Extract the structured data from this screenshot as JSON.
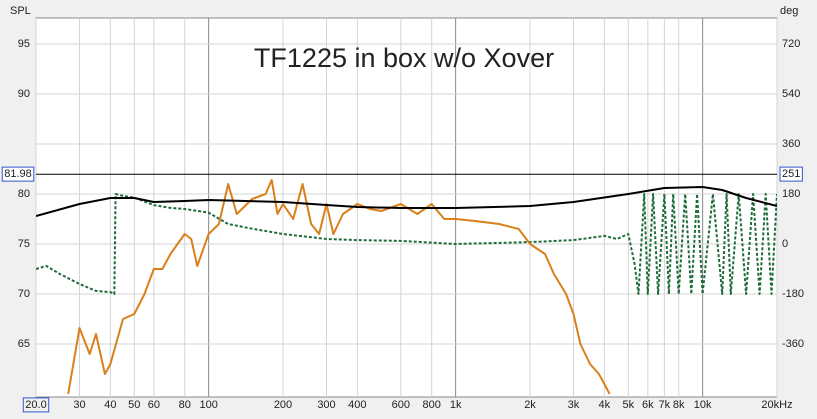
{
  "chart_data": {
    "type": "line",
    "title": "TF1225 in box w/o Xover",
    "ylabel": "SPL",
    "y2label": "deg",
    "xscale": "log",
    "xlim": [
      20,
      20000
    ],
    "xticks": [
      {
        "value": 20,
        "label": "20.0"
      },
      30,
      40,
      50,
      60,
      80,
      100,
      200,
      300,
      400,
      600,
      800,
      {
        "value": 1000,
        "label": "1k"
      },
      {
        "value": 2000,
        "label": "2k"
      },
      {
        "value": 3000,
        "label": "3k"
      },
      {
        "value": 4000,
        "label": "4k"
      },
      {
        "value": 5000,
        "label": "5k"
      },
      {
        "value": 6000,
        "label": "6k"
      },
      {
        "value": 7000,
        "label": "7k"
      },
      {
        "value": 8000,
        "label": "8k"
      },
      {
        "value": 10000,
        "label": "10k"
      },
      {
        "value": 20000,
        "label": "20kHz"
      }
    ],
    "ylim": [
      59.7,
      97.6
    ],
    "yticks": [
      65,
      70,
      75,
      80,
      90,
      95
    ],
    "y2lim": [
      -550.8,
      813.6
    ],
    "y2ticks": [
      -360,
      -180,
      0,
      180,
      360,
      540,
      720
    ],
    "grid": true,
    "cursor": {
      "y": 81.98,
      "y2": 251
    },
    "series": [
      {
        "color": "#000000",
        "width": 2,
        "x": [
          20,
          30,
          40,
          50,
          60,
          80,
          100,
          200,
          300,
          400,
          600,
          1000,
          2000,
          3000,
          5000,
          7000,
          10000,
          12000,
          15000,
          20000
        ],
        "values": [
          77.8,
          79.0,
          79.6,
          79.6,
          79.2,
          79.3,
          79.4,
          79.2,
          78.9,
          78.7,
          78.6,
          78.6,
          78.8,
          79.2,
          80.0,
          80.6,
          80.7,
          80.4,
          79.6,
          78.8
        ]
      },
      {
        "color": "#d9801a",
        "width": 2,
        "x": [
          27,
          30,
          33,
          35,
          38,
          40,
          45,
          50,
          55,
          60,
          65,
          70,
          80,
          85,
          90,
          100,
          110,
          120,
          130,
          150,
          170,
          180,
          190,
          200,
          220,
          240,
          260,
          280,
          300,
          320,
          350,
          400,
          450,
          500,
          600,
          700,
          800,
          900,
          1000,
          1200,
          1500,
          1800,
          2000,
          2300,
          2500,
          2800,
          3000,
          3200,
          3500,
          3800,
          4000,
          4200
        ],
        "values": [
          60,
          66.6,
          64,
          66,
          62,
          63,
          67.5,
          68,
          70,
          72.5,
          72.5,
          74,
          76,
          75.5,
          72.8,
          76,
          77,
          81,
          78,
          79.5,
          80,
          81.4,
          78,
          79,
          77.5,
          81,
          77,
          76,
          79,
          76,
          78,
          79,
          78.5,
          78.3,
          79,
          78,
          79,
          77.5,
          77.5,
          77.3,
          77,
          76.5,
          75,
          74,
          72,
          70,
          68,
          65,
          63,
          62,
          61,
          60
        ]
      },
      {
        "color": "#1e6b3a",
        "width": 2,
        "dash": "3,2",
        "axis": "y2",
        "x": [
          20,
          22,
          25,
          30,
          35,
          40,
          41.5,
          42,
          45,
          50,
          60,
          70,
          80,
          100,
          120,
          150,
          200,
          300,
          400,
          600,
          1000,
          2000,
          3000,
          4000,
          4500,
          5000,
          5300,
          5500,
          5800,
          6000,
          6300,
          6600,
          7000,
          7300,
          7600,
          8000,
          8500,
          9000,
          9500,
          10000,
          11000,
          12000,
          12500,
          13000,
          14000,
          15000,
          16000,
          17000,
          18000,
          19000,
          20000
        ],
        "values": [
          -90,
          -79,
          -108,
          -144,
          -169,
          -173,
          -180,
          180,
          173,
          167,
          140,
          130,
          126,
          113,
          72,
          55,
          36,
          18,
          14,
          11,
          0,
          7,
          14,
          29,
          18,
          36,
          -70,
          -180,
          180,
          -180,
          180,
          -180,
          180,
          -180,
          180,
          -180,
          180,
          -180,
          180,
          -180,
          180,
          -180,
          180,
          -180,
          180,
          -180,
          180,
          -180,
          180,
          -180,
          180
        ]
      }
    ]
  }
}
